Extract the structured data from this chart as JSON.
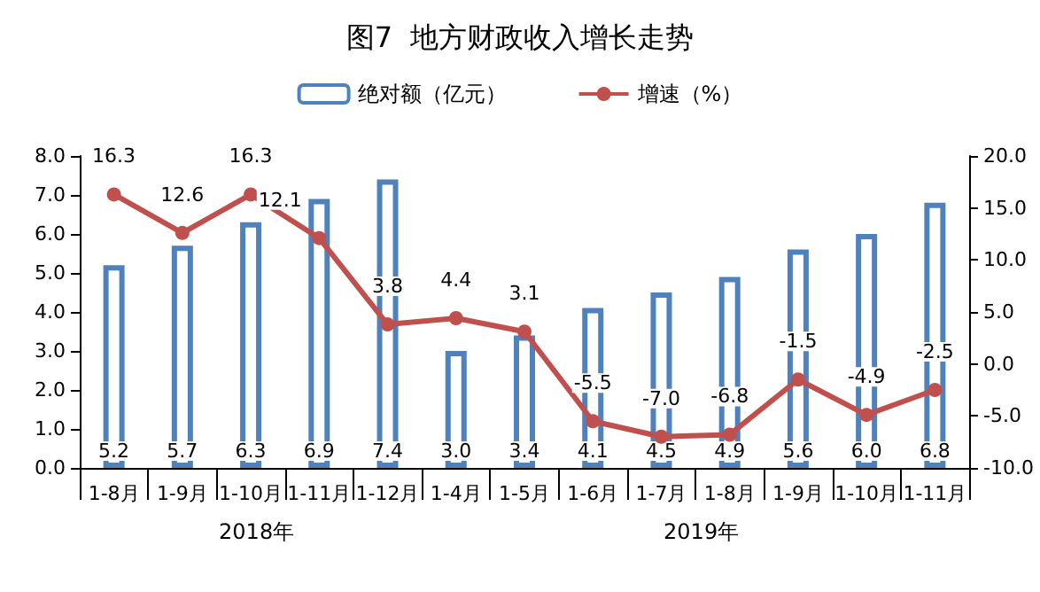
{
  "chart_data": {
    "type": "bar",
    "title": "图7  地方财政收入增长走势",
    "categories": [
      "1-8月",
      "1-9月",
      "1-10月",
      "1-11月",
      "1-12月",
      "1-4月",
      "1-5月",
      "1-6月",
      "1-7月",
      "1-8月",
      "1-9月",
      "1-10月",
      "1-11月"
    ],
    "series": [
      {
        "name": "绝对额（亿元）",
        "color": "#4f81bd",
        "values": [
          5.2,
          5.7,
          6.3,
          6.9,
          7.4,
          3.0,
          3.4,
          4.1,
          4.5,
          4.9,
          5.6,
          6.0,
          6.8
        ],
        "value_labels": [
          "5.2",
          "5.7",
          "6.3",
          "6.9",
          "7.4",
          "3.0",
          "3.4",
          "4.1",
          "4.5",
          "4.9",
          "5.6",
          "6.0",
          "6.8"
        ]
      },
      {
        "name": "增速（%）",
        "type": "line",
        "axis": "y2",
        "color": "#c0504d",
        "values": [
          16.3,
          12.6,
          16.3,
          12.1,
          3.8,
          4.4,
          3.1,
          -5.5,
          -7.0,
          -6.8,
          -1.5,
          -4.9,
          -2.5
        ],
        "value_labels": [
          "16.3",
          "12.6",
          "16.3",
          "12.1",
          "3.8",
          "4.4",
          "3.1",
          "-5.5",
          "-7.0",
          "-6.8",
          "-1.5",
          "-4.9",
          "-2.5"
        ]
      }
    ],
    "ylim": [
      0,
      8
    ],
    "yticks": [
      {
        "value": 0,
        "label": "0.0"
      },
      {
        "value": 1,
        "label": "1.0"
      },
      {
        "value": 2,
        "label": "2.0"
      },
      {
        "value": 3,
        "label": "3.0"
      },
      {
        "value": 4,
        "label": "4.0"
      },
      {
        "value": 5,
        "label": "5.0"
      },
      {
        "value": 6,
        "label": "6.0"
      },
      {
        "value": 7,
        "label": "7.0"
      },
      {
        "value": 8,
        "label": "8.0"
      }
    ],
    "y2lim": [
      -10,
      20
    ],
    "y2ticks": [
      {
        "value": -10,
        "label": "-10.0"
      },
      {
        "value": -5,
        "label": "-5.0"
      },
      {
        "value": 0,
        "label": "0.0"
      },
      {
        "value": 5,
        "label": "5.0"
      },
      {
        "value": 10,
        "label": "10.0"
      },
      {
        "value": 15,
        "label": "15.0"
      },
      {
        "value": 20,
        "label": "20.0"
      }
    ],
    "annotations": [
      "2018年",
      "2019年"
    ],
    "legend": "top",
    "grid": false,
    "marker": "circle"
  }
}
